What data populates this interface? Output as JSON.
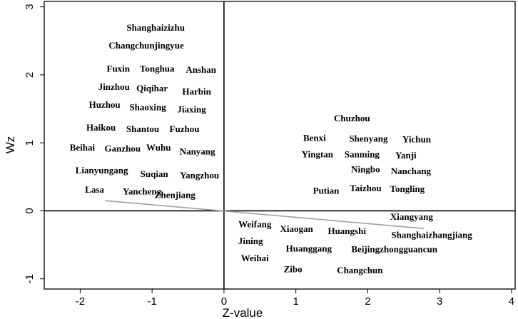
{
  "chart_data": {
    "type": "scatter",
    "title": "",
    "xlabel": "Z-value",
    "ylabel": "Wz",
    "xlim": [
      -2.5,
      4.05
    ],
    "ylim": [
      -1.15,
      3.08
    ],
    "xticks": [
      -2,
      -1,
      0,
      1,
      2,
      3,
      4
    ],
    "yticks": [
      -1,
      0,
      1,
      2,
      3
    ],
    "xtick_labels": [
      "-2",
      "-1",
      "0",
      "1",
      "2",
      "3",
      "4"
    ],
    "ytick_labels": [
      "-1",
      "0",
      "1",
      "2",
      "3"
    ],
    "grid": false,
    "legend": "none",
    "reference_lines": {
      "x": 0,
      "y": 0
    },
    "fit_line": {
      "x": [
        -1.65,
        2.78
      ],
      "y": [
        0.15,
        -0.26
      ],
      "color": "#a0a0a0"
    },
    "points": [
      {
        "label": "Shanghaizizhu",
        "x": -0.95,
        "y": 2.68
      },
      {
        "label": "Changchunjingyue",
        "x": -1.08,
        "y": 2.42
      },
      {
        "label": "Fuxin",
        "x": -1.47,
        "y": 2.08
      },
      {
        "label": "Tonghua",
        "x": -0.93,
        "y": 2.08
      },
      {
        "label": "Anshan",
        "x": -0.32,
        "y": 2.06
      },
      {
        "label": "Jinzhou",
        "x": -1.53,
        "y": 1.81
      },
      {
        "label": "Qiqihar",
        "x": -1.0,
        "y": 1.79
      },
      {
        "label": "Harbin",
        "x": -0.38,
        "y": 1.74
      },
      {
        "label": "Huzhou",
        "x": -1.66,
        "y": 1.55
      },
      {
        "label": "Shaoxing",
        "x": -1.06,
        "y": 1.51
      },
      {
        "label": "Jiaxing",
        "x": -0.45,
        "y": 1.48
      },
      {
        "label": "Haikou",
        "x": -1.71,
        "y": 1.21
      },
      {
        "label": "Shantou",
        "x": -1.13,
        "y": 1.19
      },
      {
        "label": "Fuzhou",
        "x": -0.55,
        "y": 1.19
      },
      {
        "label": "Beihai",
        "x": -1.97,
        "y": 0.92
      },
      {
        "label": "Ganzhou",
        "x": -1.41,
        "y": 0.9
      },
      {
        "label": "Wuhu",
        "x": -0.91,
        "y": 0.92
      },
      {
        "label": "Nanyang",
        "x": -0.37,
        "y": 0.86
      },
      {
        "label": "Lianyungang",
        "x": -1.7,
        "y": 0.58
      },
      {
        "label": "Suqian",
        "x": -0.97,
        "y": 0.53
      },
      {
        "label": "Yangzhou",
        "x": -0.34,
        "y": 0.51
      },
      {
        "label": "Lasa",
        "x": -1.8,
        "y": 0.3
      },
      {
        "label": "Yancheng",
        "x": -1.14,
        "y": 0.27
      },
      {
        "label": "Zhenjiang",
        "x": -0.68,
        "y": 0.22
      },
      {
        "label": "Chuzhou",
        "x": 1.78,
        "y": 1.35
      },
      {
        "label": "Benxi",
        "x": 1.26,
        "y": 1.06
      },
      {
        "label": "Shenyang",
        "x": 2.01,
        "y": 1.05
      },
      {
        "label": "Yichun",
        "x": 2.68,
        "y": 1.04
      },
      {
        "label": "Yingtan",
        "x": 1.3,
        "y": 0.82
      },
      {
        "label": "Sanming",
        "x": 1.92,
        "y": 0.82
      },
      {
        "label": "Yanji",
        "x": 2.53,
        "y": 0.8
      },
      {
        "label": "Ningbo",
        "x": 1.97,
        "y": 0.6
      },
      {
        "label": "Nanchang",
        "x": 2.6,
        "y": 0.57
      },
      {
        "label": "Putian",
        "x": 1.42,
        "y": 0.28
      },
      {
        "label": "Taizhou",
        "x": 1.97,
        "y": 0.32
      },
      {
        "label": "Tongling",
        "x": 2.55,
        "y": 0.31
      },
      {
        "label": "Xiangyang",
        "x": 2.61,
        "y": -0.1
      },
      {
        "label": "Weifang",
        "x": 0.43,
        "y": -0.21
      },
      {
        "label": "Xiaogan",
        "x": 1.01,
        "y": -0.28
      },
      {
        "label": "Huangshi",
        "x": 1.71,
        "y": -0.31
      },
      {
        "label": "Shanghaizhangjiang",
        "x": 2.89,
        "y": -0.37
      },
      {
        "label": "Jining",
        "x": 0.37,
        "y": -0.46
      },
      {
        "label": "Huanggang",
        "x": 1.18,
        "y": -0.57
      },
      {
        "label": "Beijingzhongguancun",
        "x": 2.37,
        "y": -0.58
      },
      {
        "label": "Weihai",
        "x": 0.43,
        "y": -0.71
      },
      {
        "label": "Zibo",
        "x": 0.96,
        "y": -0.87
      },
      {
        "label": "Changchun",
        "x": 1.89,
        "y": -0.89
      }
    ]
  },
  "colors": {
    "axis": "#000000",
    "fit_line": "#a0a0a0",
    "label": "#000000",
    "background": "#ffffff"
  }
}
